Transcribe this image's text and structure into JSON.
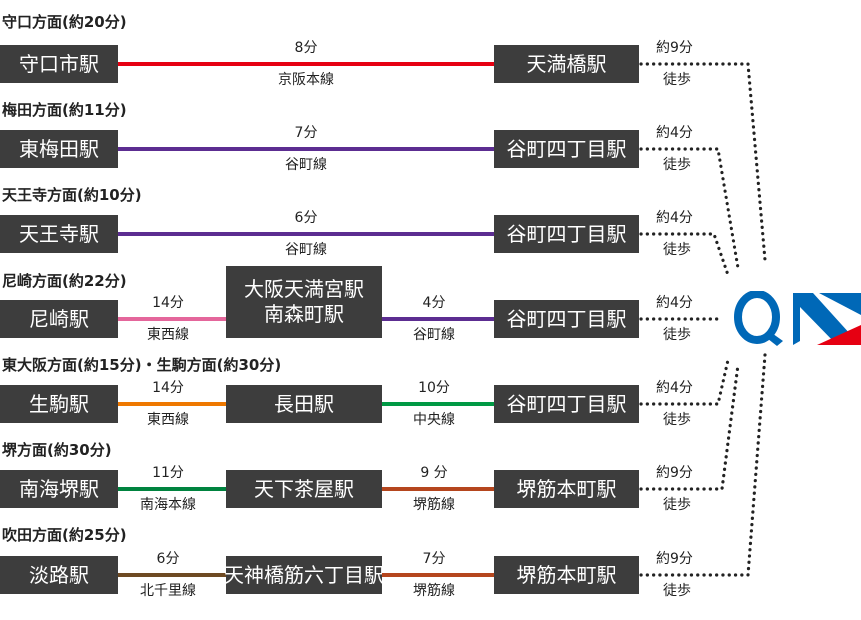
{
  "routes": [
    {
      "header": "守口方面(約20分)",
      "stations": [
        "守口市駅",
        "天満橋駅"
      ],
      "segments": [
        {
          "time": "8分",
          "line": "京阪本線",
          "color": "#e60012"
        }
      ],
      "walk": {
        "time": "約9分",
        "label": "徒歩"
      }
    },
    {
      "header": "梅田方面(約11分)",
      "stations": [
        "東梅田駅",
        "谷町四丁目駅"
      ],
      "segments": [
        {
          "time": "7分",
          "line": "谷町線",
          "color": "#5c2d91"
        }
      ],
      "walk": {
        "time": "約4分",
        "label": "徒歩"
      }
    },
    {
      "header": "天王寺方面(約10分)",
      "stations": [
        "天王寺駅",
        "谷町四丁目駅"
      ],
      "segments": [
        {
          "time": "6分",
          "line": "谷町線",
          "color": "#5c2d91"
        }
      ],
      "walk": {
        "time": "約4分",
        "label": "徒歩"
      }
    },
    {
      "header": "尼崎方面(約22分)",
      "stations": [
        "尼崎駅",
        "大阪天満宮駅 南森町駅",
        "谷町四丁目駅"
      ],
      "middle_lines": [
        "大阪天満宮駅",
        "南森町駅"
      ],
      "segments": [
        {
          "time": "14分",
          "line": "東西線",
          "color": "#e4669b"
        },
        {
          "time": "4分",
          "line": "谷町線",
          "color": "#5c2d91"
        }
      ],
      "walk": {
        "time": "約4分",
        "label": "徒歩"
      }
    },
    {
      "header": "東大阪方面(約15分)・生駒方面(約30分)",
      "stations": [
        "生駒駅",
        "長田駅",
        "谷町四丁目駅"
      ],
      "segments": [
        {
          "time": "14分",
          "line": "東西線",
          "color": "#ee7800"
        },
        {
          "time": "10分",
          "line": "中央線",
          "color": "#009944"
        }
      ],
      "walk": {
        "time": "約4分",
        "label": "徒歩"
      }
    },
    {
      "header": "堺方面(約30分)",
      "stations": [
        "南海堺駅",
        "天下茶屋駅",
        "堺筋本町駅"
      ],
      "segments": [
        {
          "time": "11分",
          "line": "南海本線",
          "color": "#00833f"
        },
        {
          "time": "9 分",
          "line": "堺筋線",
          "color": "#b5461e"
        }
      ],
      "walk": {
        "time": "約9分",
        "label": "徒歩"
      }
    },
    {
      "header": "吹田方面(約25分)",
      "stations": [
        "淡路駅",
        "天神橋筋六丁目駅",
        "堺筋本町駅"
      ],
      "segments": [
        {
          "time": "6分",
          "line": "北千里線",
          "color": "#6e4a23"
        },
        {
          "time": "7分",
          "line": "堺筋線",
          "color": "#b5461e"
        }
      ],
      "walk": {
        "time": "約9分",
        "label": "徒歩"
      }
    }
  ],
  "logo": {
    "name": "QIS logo",
    "colors": {
      "blue": "#0068b7",
      "red": "#e60012"
    }
  },
  "walk_path_style": "dotted"
}
